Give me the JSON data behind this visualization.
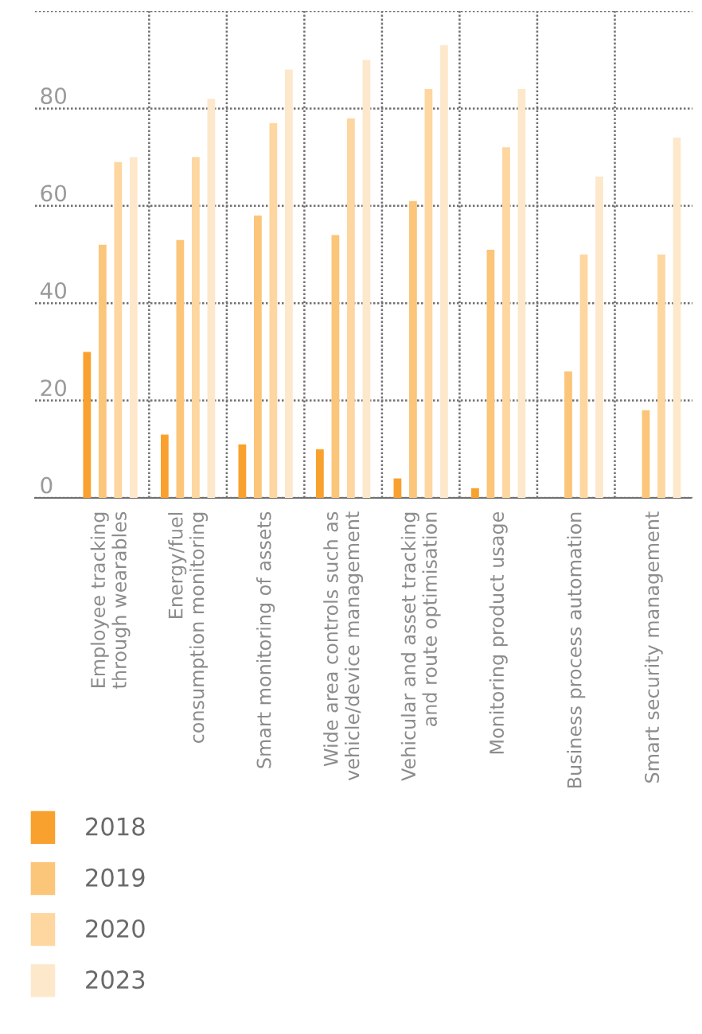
{
  "chart_data": {
    "type": "bar",
    "categories": [
      "Employee tracking\nthrough wearables",
      "Energy/fuel\nconsumption monitoring",
      "Smart monitoring of assets",
      "Wide area controls such as\nvehicle/device management",
      "Vehicular and asset tracking\nand route optimisation",
      "Monitoring product usage",
      "Business process automation",
      "Smart security management"
    ],
    "series": [
      {
        "name": "2018",
        "color": "#f9a12e",
        "values": [
          30,
          13,
          11,
          10,
          4,
          2,
          0,
          0
        ]
      },
      {
        "name": "2019",
        "color": "#fbc57a",
        "values": [
          52,
          53,
          58,
          54,
          61,
          51,
          26,
          18
        ]
      },
      {
        "name": "2020",
        "color": "#fdd6a0",
        "values": [
          69,
          70,
          77,
          78,
          84,
          72,
          50,
          50
        ]
      },
      {
        "name": "2023",
        "color": "#fde8cc",
        "values": [
          70,
          82,
          88,
          90,
          93,
          84,
          66,
          74
        ]
      }
    ],
    "ylim": [
      0,
      100
    ],
    "yticks": [
      0,
      20,
      40,
      60,
      80,
      {
        "value": 100,
        "label": null
      }
    ],
    "grid": true,
    "legend": "bottom left"
  }
}
